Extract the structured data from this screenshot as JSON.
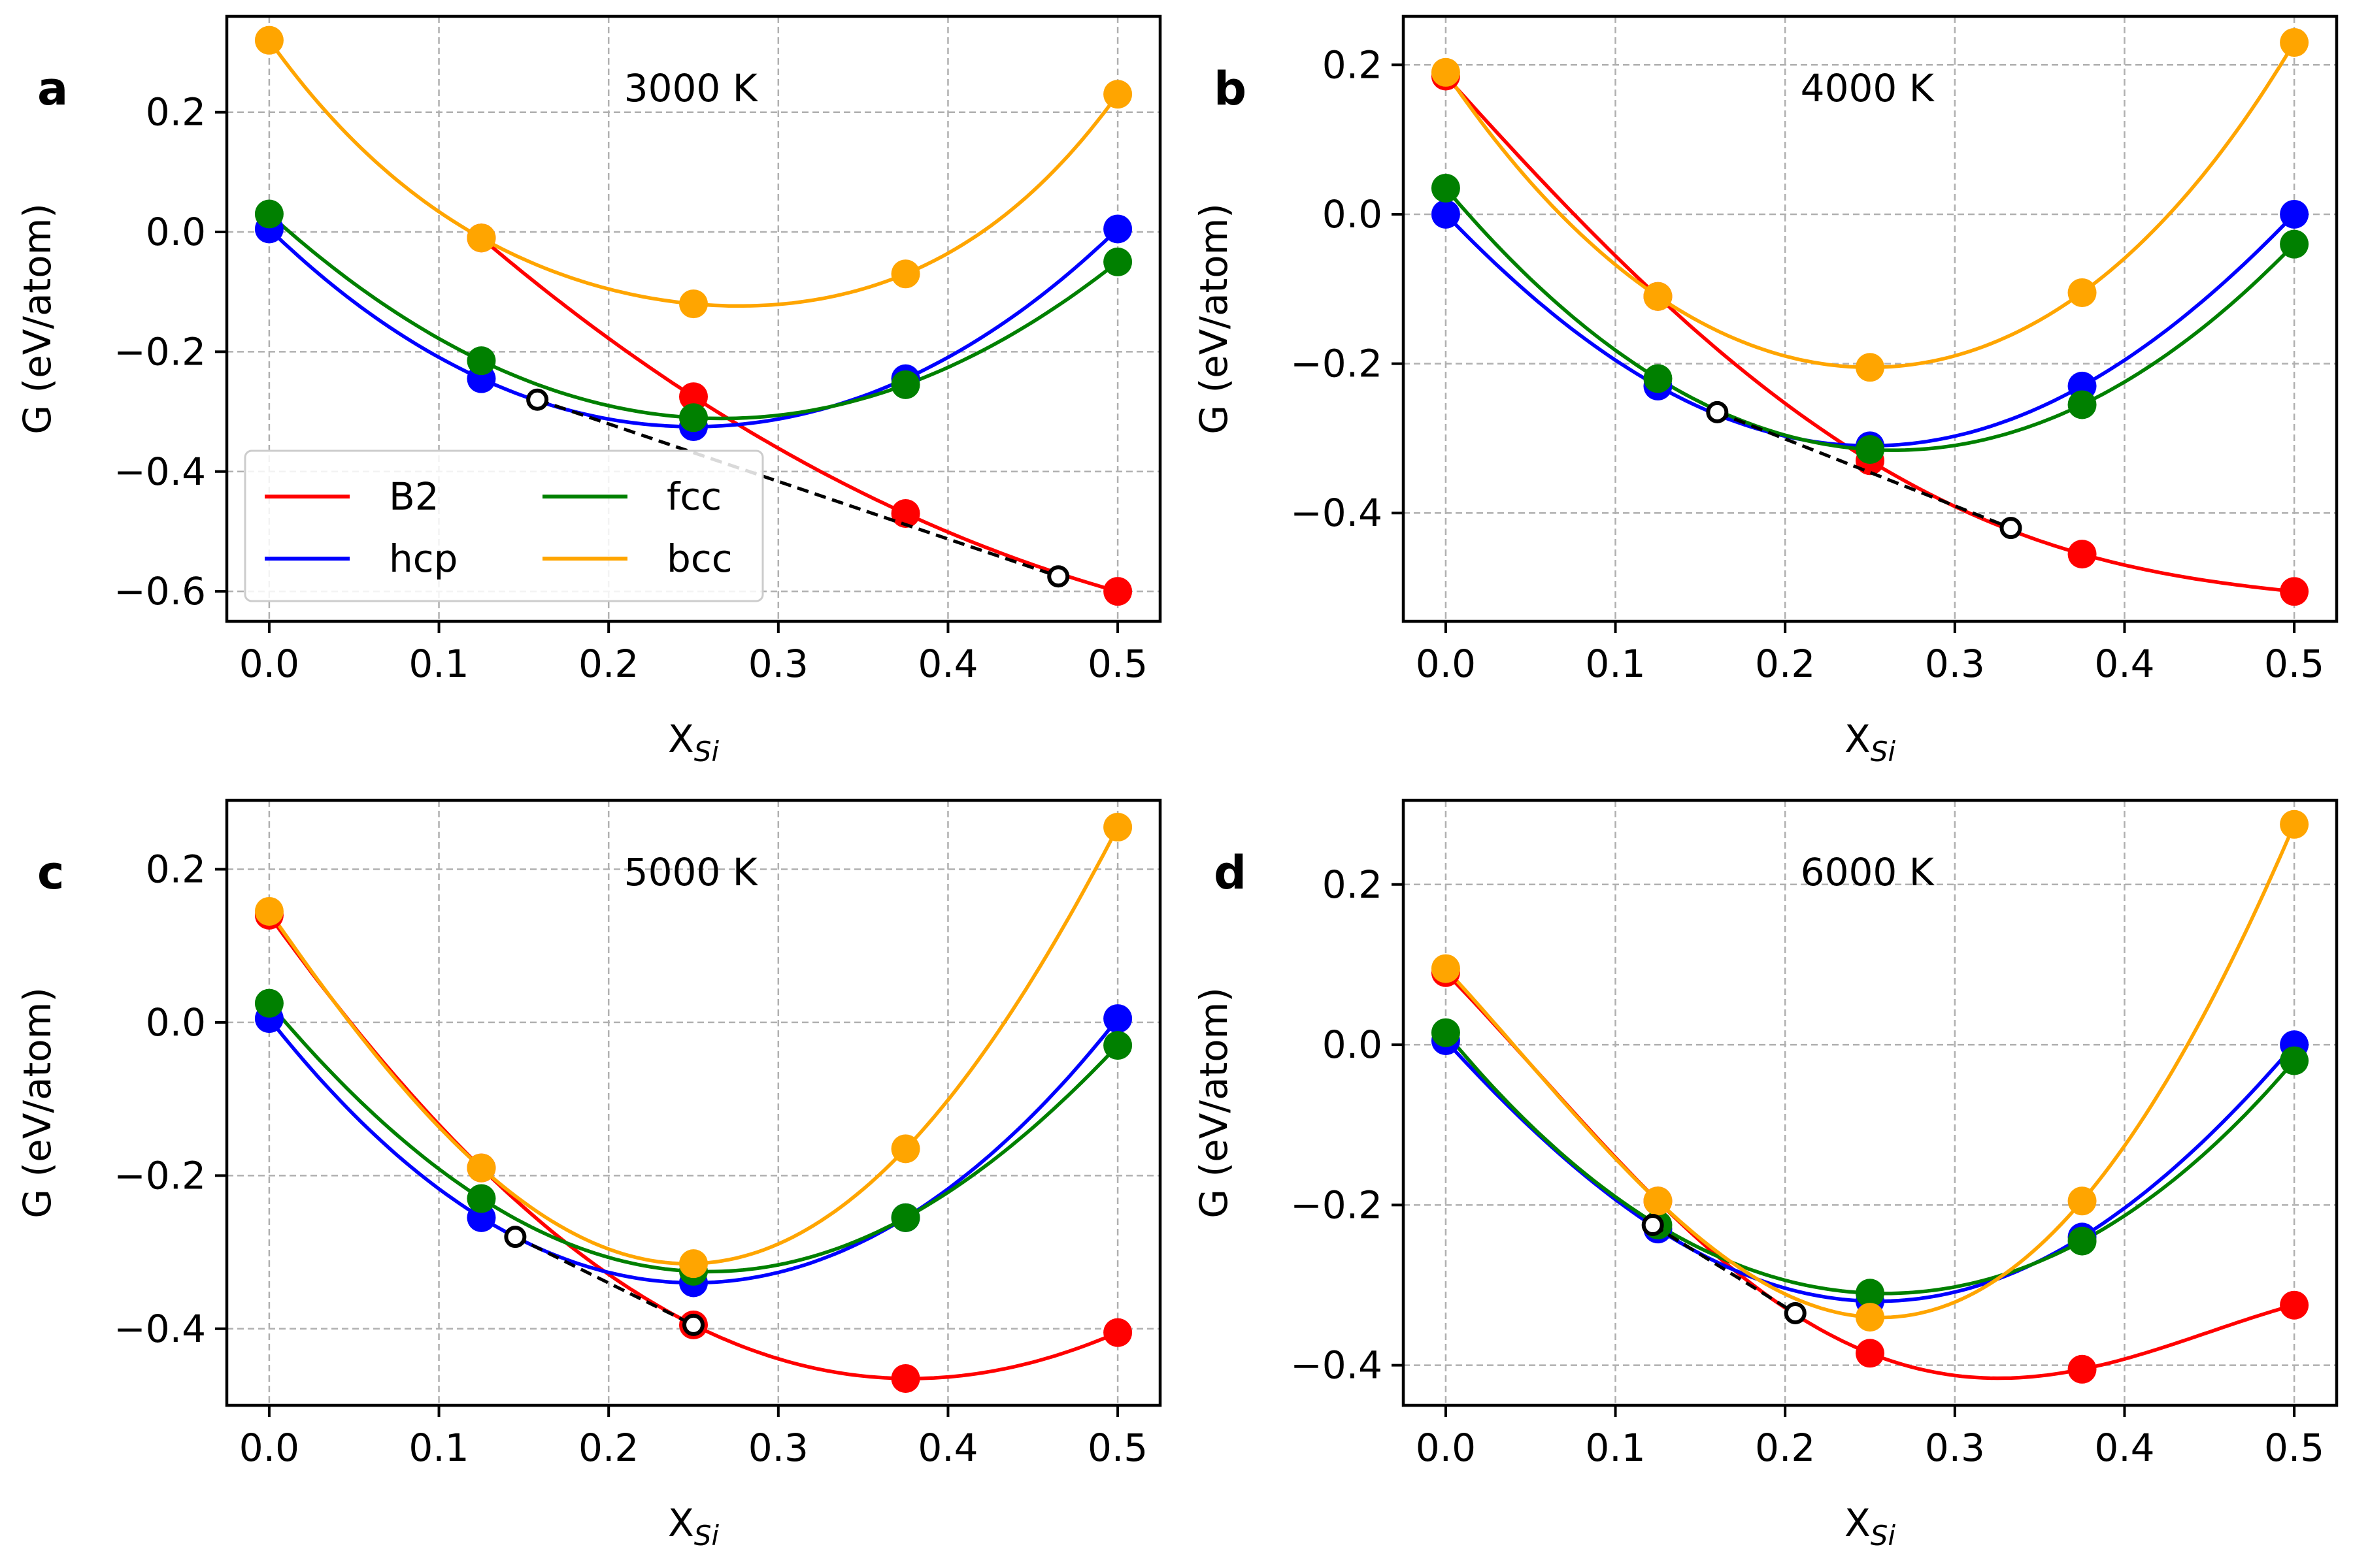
{
  "colors": {
    "B2": "#ff0000",
    "hcp": "#0000ff",
    "fcc": "#008000",
    "bcc": "#ffa500",
    "tangent": "#000000"
  },
  "legend": {
    "entries": [
      "B2",
      "fcc",
      "hcp",
      "bcc"
    ],
    "location": "lower-left of panel a"
  },
  "chart_data": [
    {
      "type": "line",
      "panel_label": "a",
      "title": "3000 K",
      "xlabel": "X",
      "xlabel_sub": "Si",
      "ylabel": "G (eV/atom)",
      "xlim": [
        -0.025,
        0.525
      ],
      "ylim": [
        -0.65,
        0.36
      ],
      "xticks": [
        0.0,
        0.1,
        0.2,
        0.3,
        0.4,
        0.5
      ],
      "xtick_labels": [
        "0.0",
        "0.1",
        "0.2",
        "0.3",
        "0.4",
        "0.5"
      ],
      "yticks": [
        -0.6,
        -0.4,
        -0.2,
        0.0,
        0.2
      ],
      "ytick_labels": [
        "−0.6",
        "−0.4",
        "−0.2",
        "0.0",
        "0.2"
      ],
      "grid": true,
      "series": [
        {
          "name": "B2",
          "x": [
            0.125,
            0.25,
            0.375,
            0.5
          ],
          "y": [
            -0.01,
            -0.275,
            -0.47,
            -0.6
          ]
        },
        {
          "name": "hcp",
          "x": [
            0.0,
            0.125,
            0.25,
            0.375,
            0.5
          ],
          "y": [
            0.005,
            -0.245,
            -0.325,
            -0.245,
            0.005
          ]
        },
        {
          "name": "fcc",
          "x": [
            0.0,
            0.125,
            0.25,
            0.375,
            0.5
          ],
          "y": [
            0.03,
            -0.215,
            -0.31,
            -0.255,
            -0.05
          ]
        },
        {
          "name": "bcc",
          "x": [
            0.0,
            0.125,
            0.25,
            0.375,
            0.5
          ],
          "y": [
            0.32,
            -0.01,
            -0.12,
            -0.07,
            0.23
          ]
        }
      ],
      "common_tangent": {
        "x": [
          0.158,
          0.465
        ],
        "y": [
          -0.28,
          -0.575
        ]
      }
    },
    {
      "type": "line",
      "panel_label": "b",
      "title": "4000 K",
      "xlabel": "X",
      "xlabel_sub": "Si",
      "ylabel": "G (eV/atom)",
      "xlim": [
        -0.025,
        0.525
      ],
      "ylim": [
        -0.545,
        0.265
      ],
      "xticks": [
        0.0,
        0.1,
        0.2,
        0.3,
        0.4,
        0.5
      ],
      "xtick_labels": [
        "0.0",
        "0.1",
        "0.2",
        "0.3",
        "0.4",
        "0.5"
      ],
      "yticks": [
        -0.4,
        -0.2,
        0.0,
        0.2
      ],
      "ytick_labels": [
        "−0.4",
        "−0.2",
        "0.0",
        "0.2"
      ],
      "grid": true,
      "series": [
        {
          "name": "B2",
          "x": [
            0.0,
            0.125,
            0.25,
            0.375,
            0.5
          ],
          "y": [
            0.185,
            -0.11,
            -0.33,
            -0.455,
            -0.505
          ]
        },
        {
          "name": "hcp",
          "x": [
            0.0,
            0.125,
            0.25,
            0.375,
            0.5
          ],
          "y": [
            0.0,
            -0.23,
            -0.31,
            -0.23,
            0.0
          ]
        },
        {
          "name": "fcc",
          "x": [
            0.0,
            0.125,
            0.25,
            0.375,
            0.5
          ],
          "y": [
            0.035,
            -0.22,
            -0.315,
            -0.255,
            -0.04
          ]
        },
        {
          "name": "bcc",
          "x": [
            0.0,
            0.125,
            0.25,
            0.375,
            0.5
          ],
          "y": [
            0.19,
            -0.11,
            -0.205,
            -0.105,
            0.23
          ]
        }
      ],
      "common_tangent": {
        "x": [
          0.16,
          0.333
        ],
        "y": [
          -0.265,
          -0.42
        ]
      }
    },
    {
      "type": "line",
      "panel_label": "c",
      "title": "5000 K",
      "xlabel": "X",
      "xlabel_sub": "Si",
      "ylabel": "G (eV/atom)",
      "xlim": [
        -0.025,
        0.525
      ],
      "ylim": [
        -0.5,
        0.29
      ],
      "xticks": [
        0.0,
        0.1,
        0.2,
        0.3,
        0.4,
        0.5
      ],
      "xtick_labels": [
        "0.0",
        "0.1",
        "0.2",
        "0.3",
        "0.4",
        "0.5"
      ],
      "yticks": [
        -0.4,
        -0.2,
        0.0,
        0.2
      ],
      "ytick_labels": [
        "−0.4",
        "−0.2",
        "0.0",
        "0.2"
      ],
      "grid": true,
      "series": [
        {
          "name": "B2",
          "x": [
            0.0,
            0.125,
            0.25,
            0.375,
            0.5
          ],
          "y": [
            0.14,
            -0.19,
            -0.395,
            -0.465,
            -0.405
          ]
        },
        {
          "name": "hcp",
          "x": [
            0.0,
            0.125,
            0.25,
            0.375,
            0.5
          ],
          "y": [
            0.005,
            -0.255,
            -0.34,
            -0.255,
            0.005
          ]
        },
        {
          "name": "fcc",
          "x": [
            0.0,
            0.125,
            0.25,
            0.375,
            0.5
          ],
          "y": [
            0.025,
            -0.23,
            -0.325,
            -0.255,
            -0.03
          ]
        },
        {
          "name": "bcc",
          "x": [
            0.0,
            0.125,
            0.25,
            0.375,
            0.5
          ],
          "y": [
            0.145,
            -0.19,
            -0.315,
            -0.165,
            0.255
          ]
        }
      ],
      "common_tangent": {
        "x": [
          0.145,
          0.25
        ],
        "y": [
          -0.28,
          -0.395
        ]
      }
    },
    {
      "type": "line",
      "panel_label": "d",
      "title": "6000 K",
      "xlabel": "X",
      "xlabel_sub": "Si",
      "ylabel": "G (eV/atom)",
      "xlim": [
        -0.025,
        0.525
      ],
      "ylim": [
        -0.45,
        0.305
      ],
      "xticks": [
        0.0,
        0.1,
        0.2,
        0.3,
        0.4,
        0.5
      ],
      "xtick_labels": [
        "0.0",
        "0.1",
        "0.2",
        "0.3",
        "0.4",
        "0.5"
      ],
      "yticks": [
        -0.4,
        -0.2,
        0.0,
        0.2
      ],
      "ytick_labels": [
        "−0.4",
        "−0.2",
        "0.0",
        "0.2"
      ],
      "grid": true,
      "series": [
        {
          "name": "B2",
          "x": [
            0.0,
            0.125,
            0.25,
            0.375,
            0.5
          ],
          "y": [
            0.09,
            -0.195,
            -0.385,
            -0.405,
            -0.325
          ]
        },
        {
          "name": "hcp",
          "x": [
            0.0,
            0.125,
            0.25,
            0.375,
            0.5
          ],
          "y": [
            0.005,
            -0.23,
            -0.32,
            -0.24,
            0.0
          ]
        },
        {
          "name": "fcc",
          "x": [
            0.0,
            0.125,
            0.25,
            0.375,
            0.5
          ],
          "y": [
            0.015,
            -0.225,
            -0.31,
            -0.245,
            -0.02
          ]
        },
        {
          "name": "bcc",
          "x": [
            0.0,
            0.125,
            0.25,
            0.375,
            0.5
          ],
          "y": [
            0.095,
            -0.195,
            -0.34,
            -0.195,
            0.275
          ]
        }
      ],
      "common_tangent": {
        "x": [
          0.122,
          0.206
        ],
        "y": [
          -0.225,
          -0.335
        ]
      }
    }
  ]
}
